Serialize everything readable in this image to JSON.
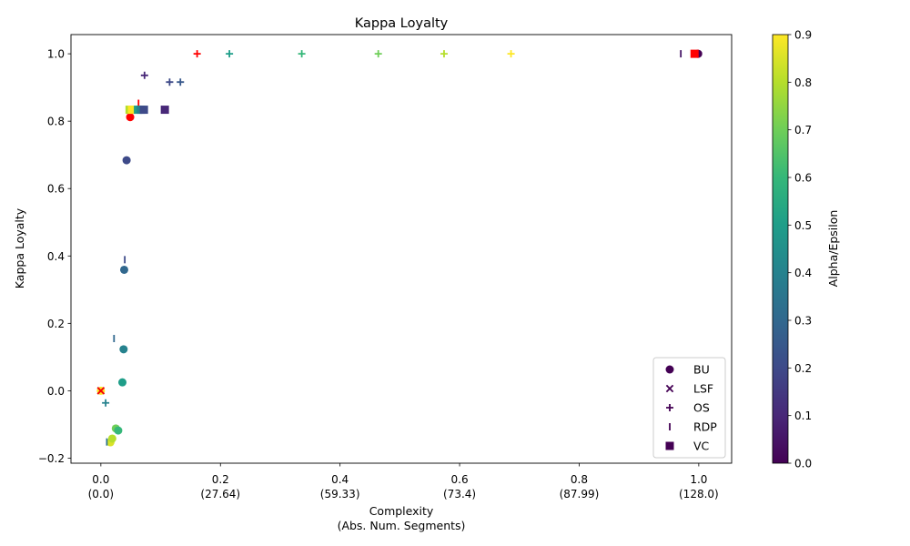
{
  "chart_data": {
    "type": "scatter",
    "title": "Kappa Loyalty",
    "xlabel_line1": "Complexity",
    "xlabel_line2": "(Abs. Num. Segments)",
    "ylabel": "Kappa Loyalty",
    "xlim": [
      -0.05,
      1.055
    ],
    "ylim": [
      -0.215,
      1.057
    ],
    "x_ticks": [
      {
        "value": 0.0,
        "label": "0.0",
        "sub": "(0.0)"
      },
      {
        "value": 0.2,
        "label": "0.2",
        "sub": "(27.64)"
      },
      {
        "value": 0.4,
        "label": "0.4",
        "sub": "(59.33)"
      },
      {
        "value": 0.6,
        "label": "0.6",
        "sub": "(73.4)"
      },
      {
        "value": 0.8,
        "label": "0.8",
        "sub": "(87.99)"
      },
      {
        "value": 1.0,
        "label": "1.0",
        "sub": "(128.0)"
      }
    ],
    "y_ticks": [
      {
        "value": -0.2,
        "label": "−0.2"
      },
      {
        "value": 0.0,
        "label": "0.0"
      },
      {
        "value": 0.2,
        "label": "0.2"
      },
      {
        "value": 0.4,
        "label": "0.4"
      },
      {
        "value": 0.6,
        "label": "0.6"
      },
      {
        "value": 0.8,
        "label": "0.8"
      },
      {
        "value": 1.0,
        "label": "1.0"
      }
    ],
    "colorbar": {
      "label": "Alpha/Epsilon",
      "range": [
        0,
        0.9
      ],
      "ticks": [
        {
          "value": 0.0,
          "label": "0.0"
        },
        {
          "value": 0.1,
          "label": "0.1"
        },
        {
          "value": 0.2,
          "label": "0.2"
        },
        {
          "value": 0.3,
          "label": "0.3"
        },
        {
          "value": 0.4,
          "label": "0.4"
        },
        {
          "value": 0.5,
          "label": "0.5"
        },
        {
          "value": 0.6,
          "label": "0.6"
        },
        {
          "value": 0.7,
          "label": "0.7"
        },
        {
          "value": 0.8,
          "label": "0.8"
        },
        {
          "value": 0.9,
          "label": "0.9"
        }
      ],
      "colormap": [
        "#440154",
        "#482878",
        "#3e4a89",
        "#31688e",
        "#26828e",
        "#1f9e89",
        "#35b779",
        "#6ece58",
        "#b5de2b",
        "#fde725"
      ]
    },
    "legend_position": "lower-right",
    "legend": [
      {
        "label": "BU",
        "marker": "circle"
      },
      {
        "label": "LSF",
        "marker": "x"
      },
      {
        "label": "OS",
        "marker": "plus"
      },
      {
        "label": "RDP",
        "marker": "vline"
      },
      {
        "label": "VC",
        "marker": "square"
      }
    ],
    "highlight_color": "#ff0000",
    "series": [
      {
        "name": "BU",
        "marker": "circle",
        "points": [
          {
            "x": 0.0,
            "y": 0.0,
            "c": 0.9
          },
          {
            "x": 0.016,
            "y": -0.153,
            "c": 0.85
          },
          {
            "x": 0.019,
            "y": -0.142,
            "c": 0.8
          },
          {
            "x": 0.025,
            "y": -0.112,
            "c": 0.7
          },
          {
            "x": 0.029,
            "y": -0.118,
            "c": 0.6
          },
          {
            "x": 0.036,
            "y": 0.025,
            "c": 0.5
          },
          {
            "x": 0.038,
            "y": 0.123,
            "c": 0.4
          },
          {
            "x": 0.039,
            "y": 0.359,
            "c": 0.3
          },
          {
            "x": 0.043,
            "y": 0.684,
            "c": 0.2
          },
          {
            "x": 0.049,
            "y": 0.812,
            "c": "red"
          },
          {
            "x": 0.998,
            "y": 1.0,
            "c": 0.1
          },
          {
            "x": 0.999,
            "y": 1.0,
            "c": 0.0
          }
        ]
      },
      {
        "name": "LSF",
        "marker": "x",
        "points": [
          {
            "x": 0.0,
            "y": 0.0,
            "c": 0.1
          },
          {
            "x": 0.0,
            "y": 0.0,
            "c": "red"
          }
        ]
      },
      {
        "name": "OS",
        "marker": "plus",
        "points": [
          {
            "x": 0.008,
            "y": -0.036,
            "c": 0.4
          },
          {
            "x": 0.073,
            "y": 0.936,
            "c": 0.1
          },
          {
            "x": 0.115,
            "y": 0.916,
            "c": 0.2
          },
          {
            "x": 0.133,
            "y": 0.916,
            "c": 0.25
          },
          {
            "x": 0.161,
            "y": 1.0,
            "c": "red"
          },
          {
            "x": 0.215,
            "y": 1.0,
            "c": 0.5
          },
          {
            "x": 0.336,
            "y": 1.0,
            "c": 0.6
          },
          {
            "x": 0.464,
            "y": 1.0,
            "c": 0.7
          },
          {
            "x": 0.574,
            "y": 1.0,
            "c": 0.8
          },
          {
            "x": 0.686,
            "y": 1.0,
            "c": 0.9
          }
        ]
      },
      {
        "name": "RDP",
        "marker": "vline",
        "points": [
          {
            "x": 0.01,
            "y": -0.152,
            "c": 0.35
          },
          {
            "x": 0.022,
            "y": 0.155,
            "c": 0.3
          },
          {
            "x": 0.04,
            "y": 0.389,
            "c": 0.2
          },
          {
            "x": 0.063,
            "y": 0.853,
            "c": "red"
          },
          {
            "x": 0.97,
            "y": 1.0,
            "c": 0.05
          }
        ]
      },
      {
        "name": "VC",
        "marker": "square",
        "points": [
          {
            "x": 0.048,
            "y": 0.834,
            "c": 0.8
          },
          {
            "x": 0.052,
            "y": 0.834,
            "c": 0.9
          },
          {
            "x": 0.062,
            "y": 0.834,
            "c": 0.5
          },
          {
            "x": 0.067,
            "y": 0.834,
            "c": 0.4
          },
          {
            "x": 0.072,
            "y": 0.834,
            "c": 0.2
          },
          {
            "x": 0.107,
            "y": 0.834,
            "c": 0.1
          },
          {
            "x": 0.993,
            "y": 1.0,
            "c": "red"
          }
        ]
      }
    ]
  }
}
